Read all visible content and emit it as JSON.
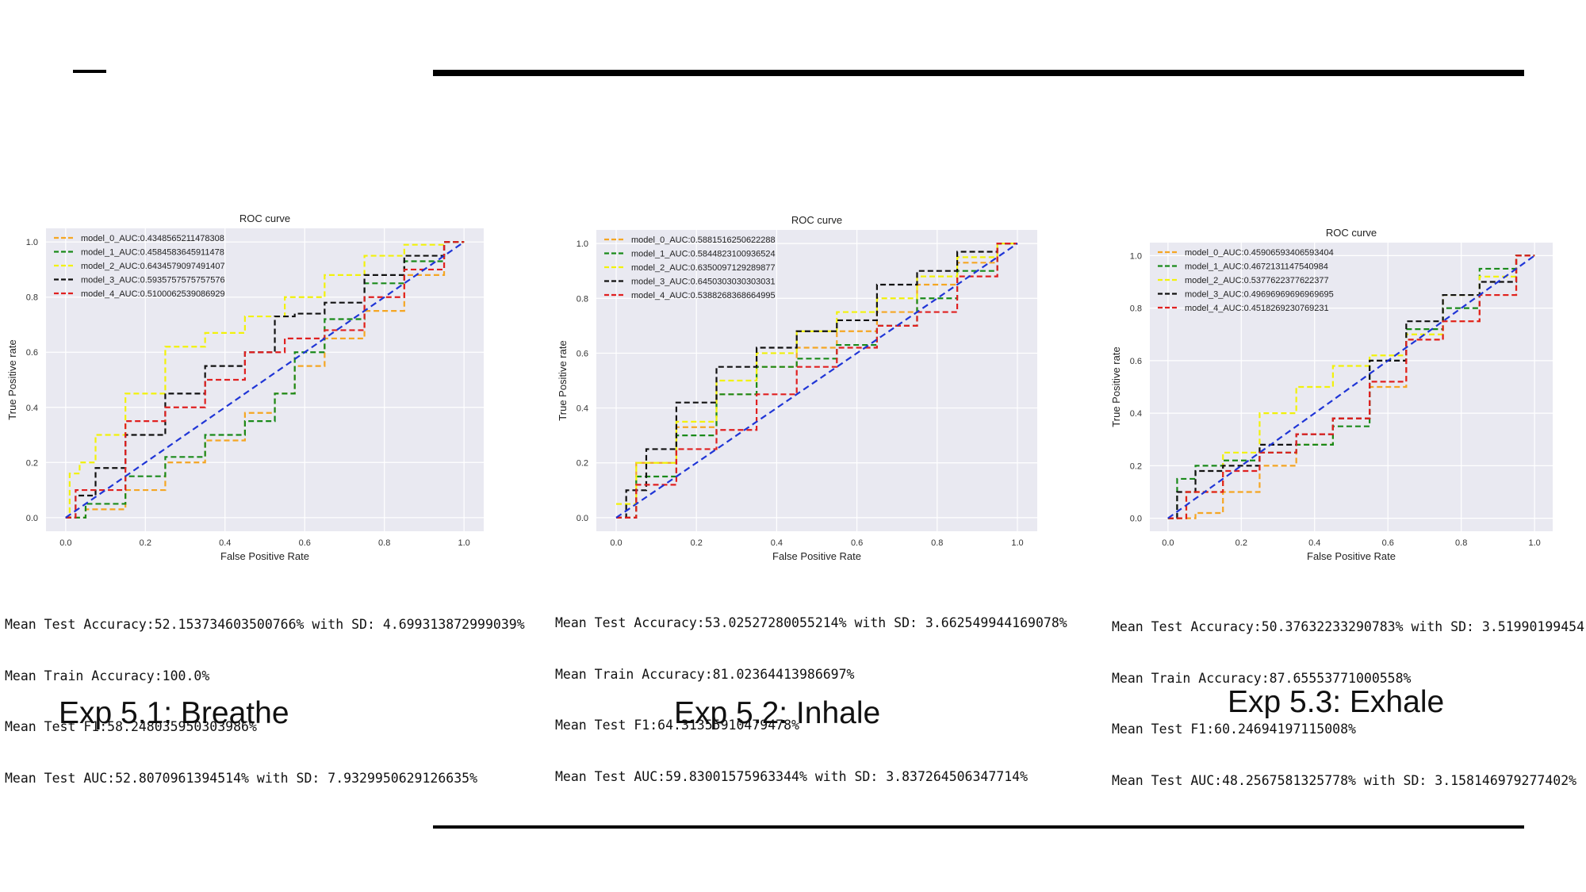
{
  "slide": {
    "experiments": [
      {
        "caption": "Exp 5.1: Breathe",
        "stats": [
          "Mean Test Accuracy:52.153734603500766% with SD: 4.699313872999039%",
          "Mean Train Accuracy:100.0%",
          "Mean Test F1:58.248035950303986%",
          "Mean Test AUC:52.8070961394514% with SD: 7.9329950629126635%"
        ]
      },
      {
        "caption": "Exp 5.2: Inhale",
        "stats": [
          "Mean Test Accuracy:53.02527280055214% with SD: 3.662549944169078%",
          "Mean Train Accuracy:81.02364413986697%",
          "Mean Test F1:64.31355910479478%",
          "Mean Test AUC:59.83001575963344% with SD: 3.837264506347714%"
        ]
      },
      {
        "caption": "Exp 5.3: Exhale",
        "stats": [
          "Mean Test Accuracy:50.37632233290783% with SD: 3.51990199454",
          "Mean Train Accuracy:87.65553771000558%",
          "Mean Test F1:60.24694197115008%",
          "Mean Test AUC:48.2567581325778% with SD: 3.158146979277402%"
        ]
      }
    ]
  },
  "chart_data": [
    {
      "type": "line",
      "title": "ROC curve",
      "xlabel": "False Positive Rate",
      "ylabel": "True Positive rate",
      "xlim": [
        0,
        1
      ],
      "ylim": [
        0,
        1
      ],
      "xticks": [
        "0.0",
        "0.2",
        "0.4",
        "0.6",
        "0.8",
        "1.0"
      ],
      "yticks": [
        "0.0",
        "0.2",
        "0.4",
        "0.6",
        "0.8",
        "1.0"
      ],
      "grid": true,
      "legend": "upper-left",
      "series": [
        {
          "name": "model_0_AUC:0.4348565211478308",
          "color": "#f5a623",
          "x": [
            0,
            0.1,
            0.2,
            0.3,
            0.4,
            0.5,
            0.55,
            0.6,
            0.7,
            0.8,
            0.9,
            1.0
          ],
          "y": [
            0,
            0.03,
            0.1,
            0.2,
            0.28,
            0.38,
            0.45,
            0.55,
            0.65,
            0.75,
            0.88,
            1.0
          ]
        },
        {
          "name": "model_1_AUC:0.4584583645911478",
          "color": "#1a8a1a",
          "x": [
            0,
            0.1,
            0.2,
            0.3,
            0.4,
            0.5,
            0.55,
            0.6,
            0.7,
            0.8,
            0.9,
            1.0
          ],
          "y": [
            0,
            0.05,
            0.15,
            0.22,
            0.3,
            0.35,
            0.45,
            0.6,
            0.72,
            0.85,
            0.93,
            1.0
          ]
        },
        {
          "name": "model_2_AUC:0.6434579097491407",
          "color": "#f2f20a",
          "x": [
            0,
            0.02,
            0.05,
            0.1,
            0.2,
            0.3,
            0.4,
            0.5,
            0.6,
            0.7,
            0.8,
            0.9,
            1.0
          ],
          "y": [
            0,
            0.16,
            0.2,
            0.3,
            0.45,
            0.62,
            0.67,
            0.73,
            0.8,
            0.88,
            0.95,
            0.99,
            1.0
          ]
        },
        {
          "name": "model_3_AUC:0.5935757575757576",
          "color": "#111111",
          "x": [
            0,
            0.05,
            0.1,
            0.2,
            0.3,
            0.4,
            0.5,
            0.55,
            0.6,
            0.7,
            0.8,
            0.9,
            1.0
          ],
          "y": [
            0,
            0.08,
            0.18,
            0.3,
            0.45,
            0.55,
            0.6,
            0.73,
            0.74,
            0.78,
            0.88,
            0.95,
            1.0
          ]
        },
        {
          "name": "model_4_AUC:0.5100062539086929",
          "color": "#e02020",
          "x": [
            0,
            0.05,
            0.1,
            0.2,
            0.3,
            0.4,
            0.5,
            0.6,
            0.7,
            0.8,
            0.9,
            1.0
          ],
          "y": [
            0,
            0.1,
            0.1,
            0.35,
            0.4,
            0.5,
            0.6,
            0.65,
            0.68,
            0.8,
            0.9,
            1.0
          ]
        }
      ],
      "diagonal_color": "#1f35d6"
    },
    {
      "type": "line",
      "title": "ROC curve",
      "xlabel": "False Positive Rate",
      "ylabel": "True Positive rate",
      "xlim": [
        0,
        1
      ],
      "ylim": [
        0,
        1
      ],
      "xticks": [
        "0.0",
        "0.2",
        "0.4",
        "0.6",
        "0.8",
        "1.0"
      ],
      "yticks": [
        "0.0",
        "0.2",
        "0.4",
        "0.6",
        "0.8",
        "1.0"
      ],
      "grid": true,
      "legend": "upper-left",
      "series": [
        {
          "name": "model_0_AUC:0.5881516250622288",
          "color": "#f5a623",
          "x": [
            0,
            0.1,
            0.2,
            0.3,
            0.4,
            0.5,
            0.6,
            0.7,
            0.8,
            0.9,
            1.0
          ],
          "y": [
            0,
            0.2,
            0.33,
            0.45,
            0.55,
            0.62,
            0.68,
            0.75,
            0.85,
            0.93,
            1.0
          ]
        },
        {
          "name": "model_1_AUC:0.5844823100936524",
          "color": "#1a8a1a",
          "x": [
            0,
            0.1,
            0.2,
            0.3,
            0.4,
            0.5,
            0.6,
            0.7,
            0.8,
            0.9,
            1.0
          ],
          "y": [
            0,
            0.15,
            0.3,
            0.45,
            0.55,
            0.58,
            0.63,
            0.7,
            0.8,
            0.9,
            1.0
          ]
        },
        {
          "name": "model_2_AUC:0.6350097129289877",
          "color": "#f2f20a",
          "x": [
            0,
            0.1,
            0.2,
            0.3,
            0.4,
            0.5,
            0.6,
            0.7,
            0.8,
            0.9,
            1.0
          ],
          "y": [
            0.05,
            0.2,
            0.35,
            0.5,
            0.6,
            0.68,
            0.75,
            0.8,
            0.88,
            0.95,
            1.0
          ]
        },
        {
          "name": "model_3_AUC:0.6450303030303031",
          "color": "#111111",
          "x": [
            0,
            0.05,
            0.1,
            0.2,
            0.3,
            0.4,
            0.5,
            0.6,
            0.7,
            0.8,
            0.9,
            1.0
          ],
          "y": [
            0,
            0.1,
            0.25,
            0.42,
            0.55,
            0.62,
            0.68,
            0.72,
            0.85,
            0.9,
            0.97,
            1.0
          ]
        },
        {
          "name": "model_4_AUC:0.5388268368664995",
          "color": "#e02020",
          "x": [
            0,
            0.1,
            0.2,
            0.3,
            0.4,
            0.5,
            0.6,
            0.7,
            0.8,
            0.9,
            1.0
          ],
          "y": [
            0,
            0.12,
            0.25,
            0.32,
            0.45,
            0.55,
            0.62,
            0.7,
            0.75,
            0.88,
            1.0
          ]
        }
      ],
      "diagonal_color": "#1f35d6"
    },
    {
      "type": "line",
      "title": "ROC curve",
      "xlabel": "False Positive Rate",
      "ylabel": "True Positive rate",
      "xlim": [
        0,
        1
      ],
      "ylim": [
        0,
        1
      ],
      "xticks": [
        "0.0",
        "0.2",
        "0.4",
        "0.6",
        "0.8",
        "1.0"
      ],
      "yticks": [
        "0.0",
        "0.2",
        "0.4",
        "0.6",
        "0.8",
        "1.0"
      ],
      "grid": true,
      "legend": "upper-left",
      "series": [
        {
          "name": "model_0_AUC:0.45906593406593404",
          "color": "#f5a623",
          "x": [
            0,
            0.05,
            0.1,
            0.2,
            0.3,
            0.4,
            0.5,
            0.6,
            0.7,
            0.8,
            0.9,
            1.0
          ],
          "y": [
            0,
            0,
            0.02,
            0.1,
            0.2,
            0.28,
            0.38,
            0.5,
            0.68,
            0.75,
            0.85,
            1.0
          ]
        },
        {
          "name": "model_1_AUC:0.4672131147540984",
          "color": "#1a8a1a",
          "x": [
            0,
            0.05,
            0.1,
            0.2,
            0.3,
            0.4,
            0.5,
            0.6,
            0.7,
            0.8,
            0.9,
            1.0
          ],
          "y": [
            0,
            0.15,
            0.2,
            0.22,
            0.25,
            0.28,
            0.35,
            0.6,
            0.72,
            0.8,
            0.95,
            1.0
          ]
        },
        {
          "name": "model_2_AUC:0.5377622377622377",
          "color": "#f2f20a",
          "x": [
            0,
            0.1,
            0.2,
            0.3,
            0.4,
            0.5,
            0.6,
            0.7,
            0.8,
            0.9,
            1.0
          ],
          "y": [
            0,
            0.1,
            0.25,
            0.4,
            0.5,
            0.58,
            0.62,
            0.7,
            0.85,
            0.92,
            1.0
          ]
        },
        {
          "name": "model_3_AUC:0.49696969696969695",
          "color": "#111111",
          "x": [
            0,
            0.05,
            0.1,
            0.2,
            0.3,
            0.4,
            0.5,
            0.6,
            0.7,
            0.8,
            0.9,
            1.0
          ],
          "y": [
            0,
            0.1,
            0.18,
            0.2,
            0.28,
            0.32,
            0.38,
            0.6,
            0.75,
            0.85,
            0.9,
            1.0
          ]
        },
        {
          "name": "model_4_AUC:0.4518269230769231",
          "color": "#e02020",
          "x": [
            0,
            0.1,
            0.2,
            0.3,
            0.4,
            0.5,
            0.6,
            0.7,
            0.8,
            0.9,
            1.0
          ],
          "y": [
            0,
            0.1,
            0.18,
            0.25,
            0.32,
            0.38,
            0.52,
            0.68,
            0.75,
            0.85,
            1.0
          ]
        }
      ],
      "diagonal_color": "#1f35d6"
    }
  ]
}
